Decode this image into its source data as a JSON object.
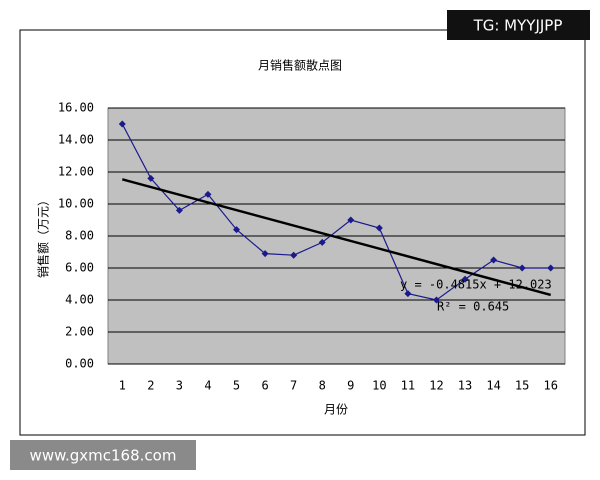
{
  "chart_data": {
    "type": "line",
    "title": "月销售额散点图",
    "x_label": "月份",
    "y_label": "销售额（万元）",
    "categories": [
      1,
      2,
      3,
      4,
      5,
      6,
      7,
      8,
      9,
      10,
      11,
      12,
      13,
      14,
      15,
      16
    ],
    "series": [
      {
        "name": "销售额",
        "color": "#1a1a8c",
        "values": [
          15.0,
          11.6,
          9.6,
          10.6,
          8.4,
          6.9,
          6.8,
          7.6,
          9.0,
          8.5,
          4.4,
          4.0,
          5.3,
          6.5,
          6.0,
          6.0
        ]
      }
    ],
    "ylim": [
      0,
      16
    ],
    "yticks": [
      {
        "value": 0,
        "label": "0.00"
      },
      {
        "value": 2,
        "label": "2.00"
      },
      {
        "value": 4,
        "label": "4.00"
      },
      {
        "value": 6,
        "label": "6.00"
      },
      {
        "value": 8,
        "label": "8.00"
      },
      {
        "value": 10,
        "label": "10.00"
      },
      {
        "value": 12,
        "label": "12.00"
      },
      {
        "value": 14,
        "label": "14.00"
      },
      {
        "value": 16,
        "label": "16.00"
      }
    ],
    "grid": true,
    "plot_background": "#c0c0c0",
    "trendline": {
      "slope": -0.4815,
      "intercept": 12.023,
      "color": "#000000",
      "equation": "y = -0.4815x + 12.023",
      "r2": "R² = 0.645"
    }
  },
  "watermarks": [
    "TG: MYYJJPP",
    "www.gxmc168.com"
  ]
}
